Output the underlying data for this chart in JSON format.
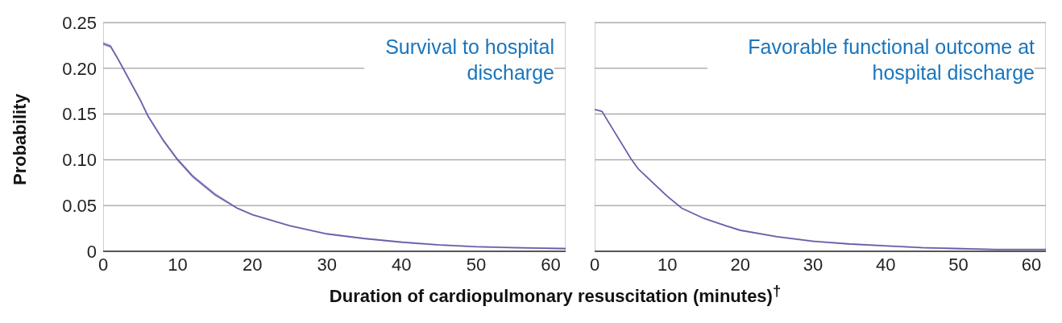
{
  "chart_data": [
    {
      "type": "line",
      "title": "Survival to hospital discharge",
      "ylabel": "Probability",
      "xlabel": "Duration of cardiopulmonary resuscitation (minutes)$^{†}$",
      "xlim": [
        0,
        62
      ],
      "xticks": [
        0,
        10,
        20,
        30,
        40,
        50,
        60
      ],
      "ylim": [
        0,
        0.25
      ],
      "yticks": [
        0,
        0.05,
        {
          "value": 0.1,
          "label": "0.10"
        },
        0.15,
        {
          "value": 0.2,
          "label": "0.20"
        },
        0.25
      ],
      "grid": "y",
      "legend": false,
      "marker": "none",
      "x": [
        0,
        1,
        2,
        3,
        5,
        6,
        8,
        10,
        12,
        15,
        18,
        20,
        25,
        30,
        35,
        40,
        45,
        50,
        55,
        62
      ],
      "series": [
        {
          "color": "#6a5aa8",
          "values": [
            0.227,
            0.224,
            0.21,
            0.195,
            0.165,
            0.148,
            0.122,
            0.1,
            0.082,
            0.062,
            0.047,
            0.04,
            0.028,
            0.019,
            0.014,
            0.01,
            0.007,
            0.005,
            0.004,
            0.003
          ],
          "lower": [
            0.225,
            0.222,
            0.208,
            0.193,
            0.163,
            0.146,
            0.12,
            0.098,
            0.08,
            0.06,
            0.046,
            0.039,
            0.027,
            0.018,
            0.013,
            0.009,
            0.006,
            0.004,
            0.003,
            0.002
          ],
          "upper": [
            0.229,
            0.226,
            0.212,
            0.197,
            0.167,
            0.15,
            0.124,
            0.102,
            0.084,
            0.064,
            0.048,
            0.041,
            0.029,
            0.02,
            0.015,
            0.011,
            0.008,
            0.006,
            0.005,
            0.004
          ]
        }
      ]
    },
    {
      "type": "line",
      "title": "Favorable functional outcome at hospital discharge",
      "tick_labels": "x",
      "xlim": [
        0,
        62
      ],
      "xticks": [
        0,
        10,
        20,
        30,
        40,
        50,
        60
      ],
      "ylim": [
        0,
        0.25
      ],
      "yticks": [
        0,
        0.05,
        0.1,
        0.15,
        0.2,
        0.25
      ],
      "grid": "y",
      "legend": false,
      "marker": "none",
      "x": [
        0,
        1,
        2,
        3,
        5,
        6,
        8,
        10,
        12,
        15,
        18,
        20,
        25,
        30,
        35,
        40,
        45,
        50,
        55,
        62
      ],
      "series": [
        {
          "color": "#6a5aa8",
          "values": [
            0.155,
            0.153,
            0.14,
            0.127,
            0.101,
            0.09,
            0.075,
            0.06,
            0.047,
            0.036,
            0.028,
            0.023,
            0.016,
            0.011,
            0.008,
            0.006,
            0.004,
            0.003,
            0.002,
            0.002
          ],
          "lower": [
            0.154,
            0.152,
            0.139,
            0.126,
            0.1,
            0.089,
            0.074,
            0.059,
            0.046,
            0.035,
            0.027,
            0.022,
            0.015,
            0.01,
            0.007,
            0.005,
            0.003,
            0.002,
            0.001,
            0.001
          ],
          "upper": [
            0.156,
            0.154,
            0.141,
            0.128,
            0.102,
            0.091,
            0.076,
            0.061,
            0.048,
            0.037,
            0.029,
            0.024,
            0.017,
            0.012,
            0.009,
            0.007,
            0.005,
            0.004,
            0.003,
            0.003
          ]
        }
      ]
    }
  ]
}
